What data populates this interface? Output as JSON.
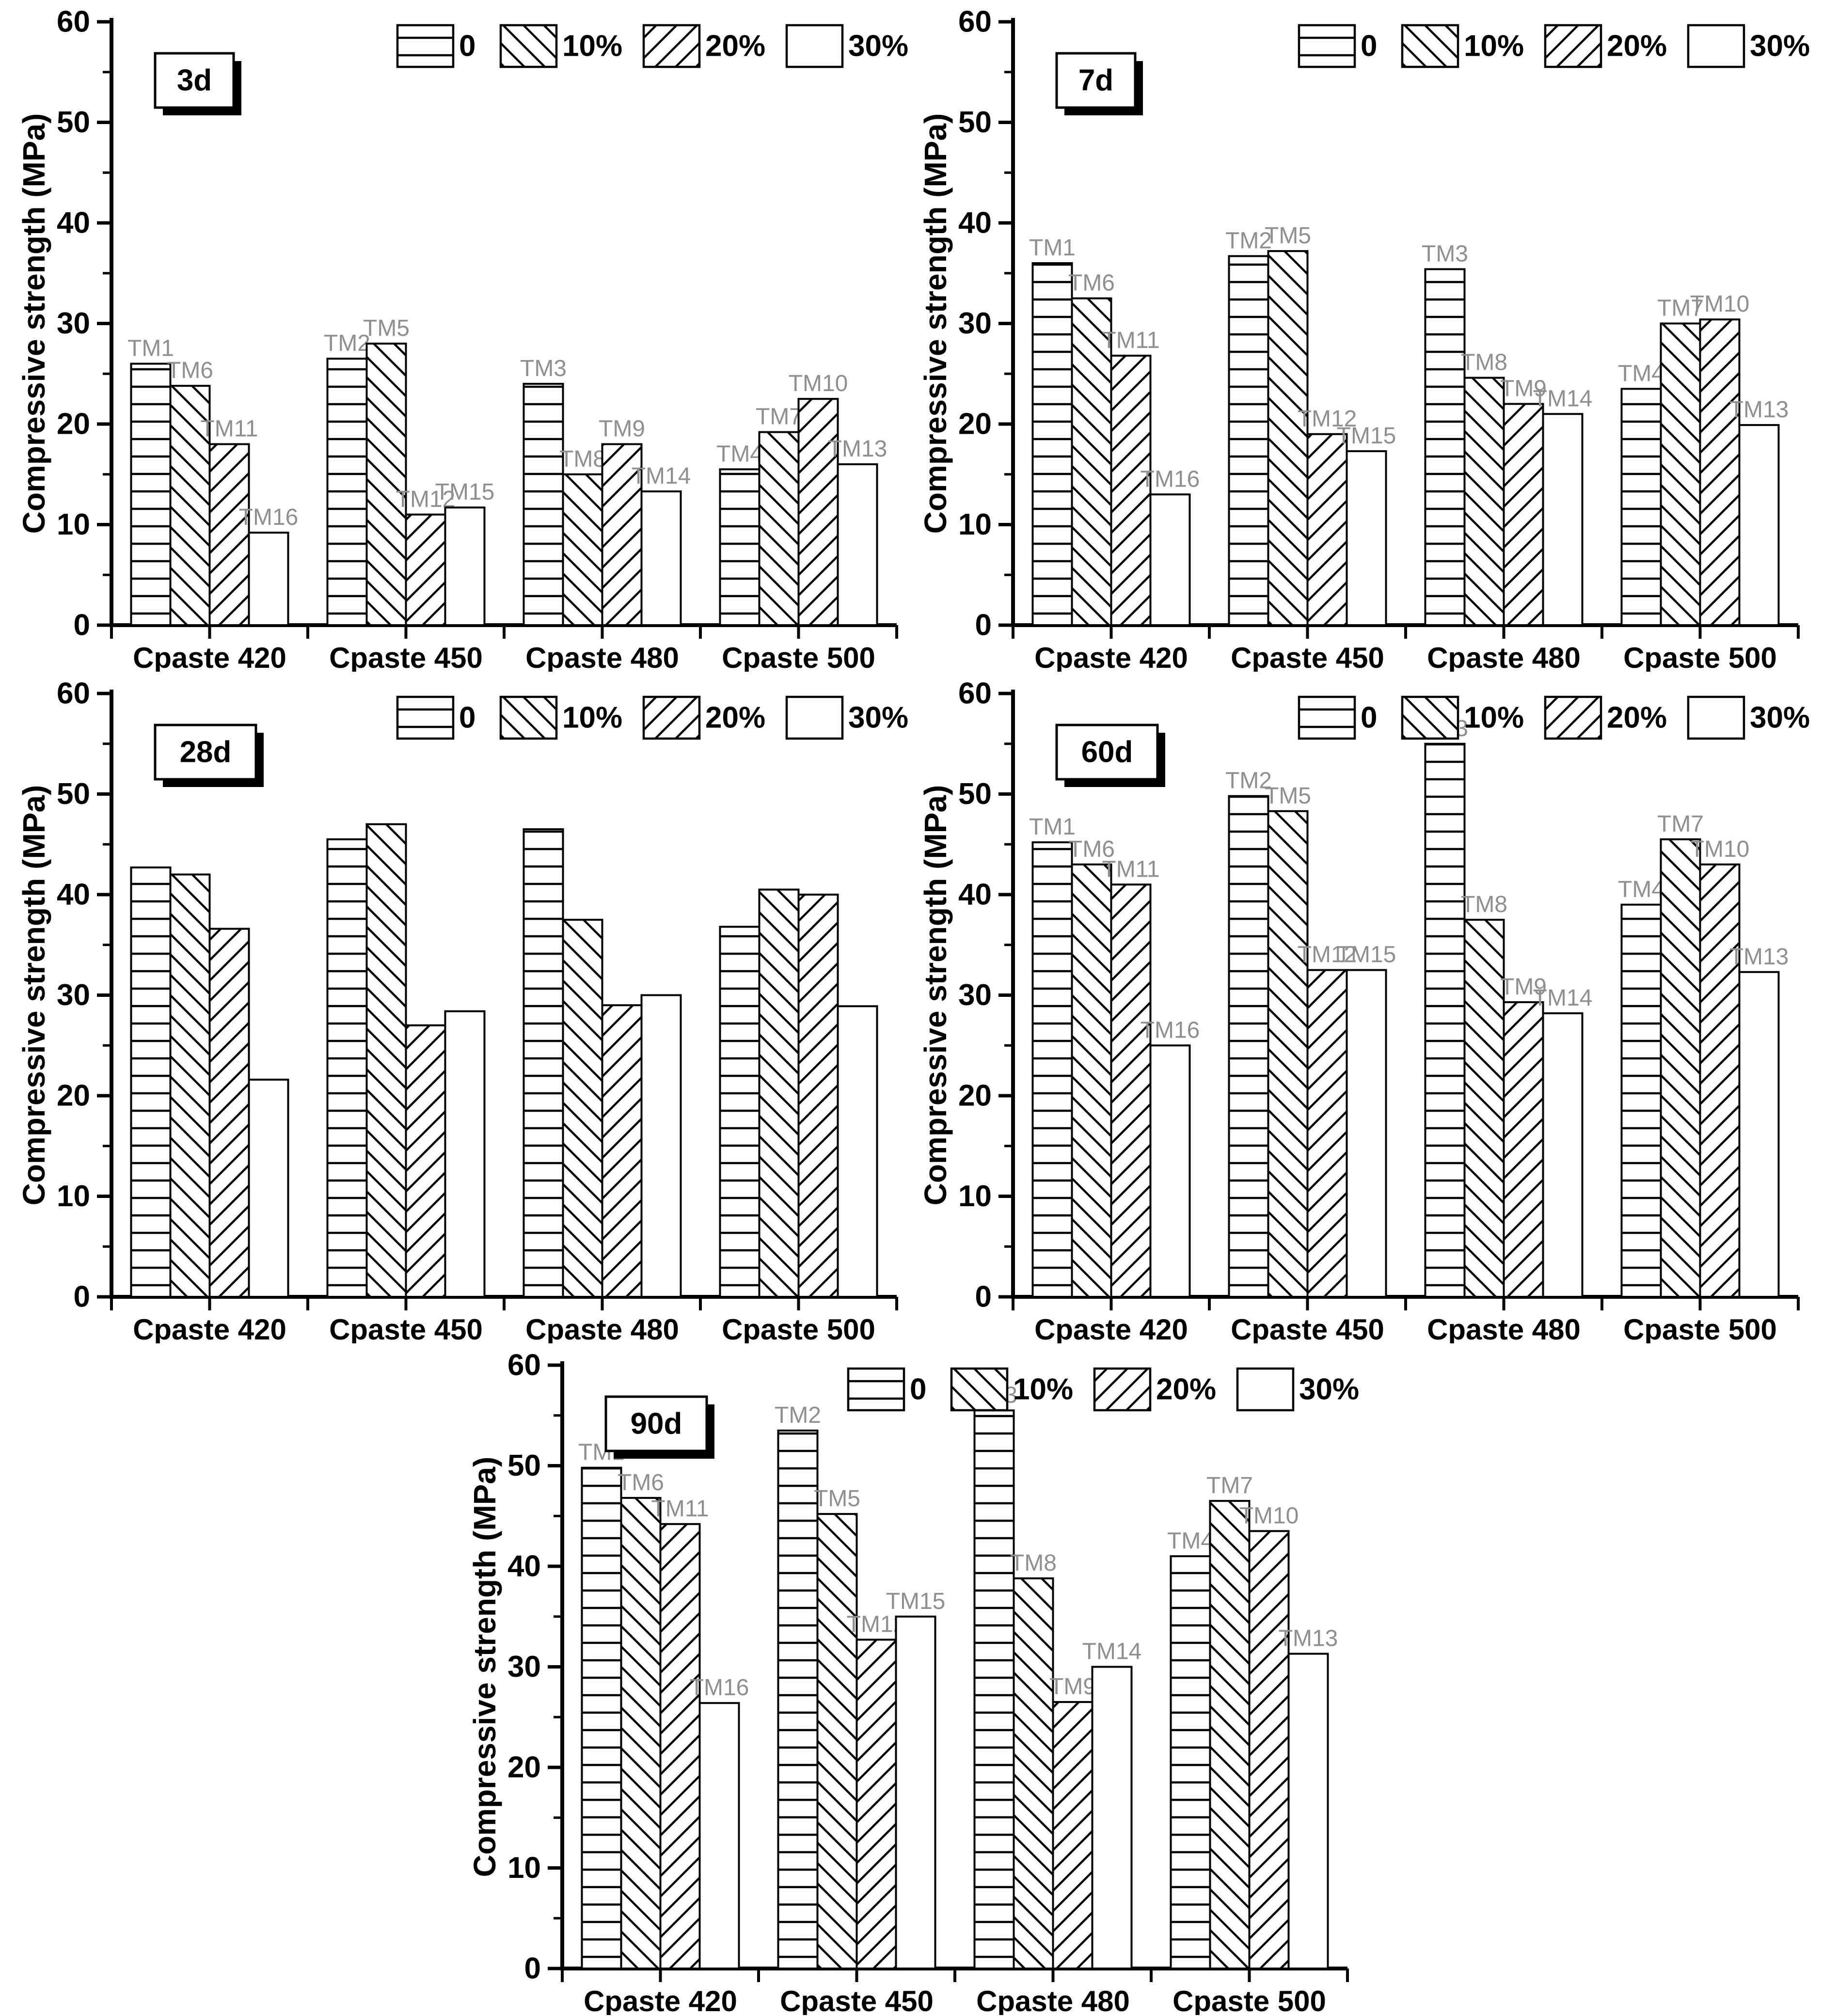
{
  "colors": {
    "axis": "#000000",
    "bar_border": "#000000",
    "bar_fill": "#ffffff",
    "bar_label": "#8f8f8f",
    "background": "#ffffff",
    "text": "#000000"
  },
  "ylabel": "Compressive strength (MPa)",
  "legend": [
    "0",
    "10%",
    "20%",
    "30%"
  ],
  "hatches": [
    "horizontal",
    "diagonal-down",
    "diagonal-up",
    "none"
  ],
  "categories": [
    "Cpaste 420",
    "Cpaste 450",
    "Cpaste 480",
    "Cpaste 500"
  ],
  "bar_labels": [
    [
      "TM1",
      "TM6",
      "TM11",
      "TM16"
    ],
    [
      "TM2",
      "TM5",
      "TM12",
      "TM15"
    ],
    [
      "TM3",
      "TM8",
      "TM9",
      "TM14"
    ],
    [
      "TM4",
      "TM7",
      "TM10",
      "TM13"
    ]
  ],
  "chart_data": [
    {
      "type": "bar",
      "title": "3d",
      "ylabel": "Compressive strength (MPa)",
      "ylim": [
        0,
        60
      ],
      "ytick_step": 10,
      "grid": false,
      "legend_position": "top",
      "legend": [
        "0",
        "10%",
        "20%",
        "30%"
      ],
      "categories": [
        "Cpaste 420",
        "Cpaste 450",
        "Cpaste 480",
        "Cpaste 500"
      ],
      "series": [
        {
          "name": "0",
          "values": [
            26.0,
            26.5,
            24.0,
            15.5
          ]
        },
        {
          "name": "10%",
          "values": [
            23.8,
            28.0,
            15.0,
            19.2
          ]
        },
        {
          "name": "20%",
          "values": [
            18.0,
            11.0,
            18.0,
            22.5
          ]
        },
        {
          "name": "30%",
          "values": [
            9.2,
            11.7,
            13.3,
            16.0
          ]
        }
      ],
      "show_bar_labels": true
    },
    {
      "type": "bar",
      "title": "7d",
      "ylabel": "Compressive strength (MPa)",
      "ylim": [
        0,
        60
      ],
      "ytick_step": 10,
      "grid": false,
      "legend_position": "top",
      "legend": [
        "0",
        "10%",
        "20%",
        "30%"
      ],
      "categories": [
        "Cpaste 420",
        "Cpaste 450",
        "Cpaste 480",
        "Cpaste 500"
      ],
      "series": [
        {
          "name": "0",
          "values": [
            36.0,
            36.7,
            35.4,
            23.5
          ]
        },
        {
          "name": "10%",
          "values": [
            32.5,
            37.2,
            24.6,
            30.0
          ]
        },
        {
          "name": "20%",
          "values": [
            26.8,
            19.0,
            22.0,
            30.4
          ]
        },
        {
          "name": "30%",
          "values": [
            13.0,
            17.3,
            21.0,
            19.9
          ]
        }
      ],
      "show_bar_labels": true
    },
    {
      "type": "bar",
      "title": "28d",
      "ylabel": "Compressive strength (MPa)",
      "ylim": [
        0,
        60
      ],
      "ytick_step": 10,
      "grid": false,
      "legend_position": "top",
      "legend": [
        "0",
        "10%",
        "20%",
        "30%"
      ],
      "categories": [
        "Cpaste 420",
        "Cpaste 450",
        "Cpaste 480",
        "Cpaste 500"
      ],
      "series": [
        {
          "name": "0",
          "values": [
            42.7,
            45.5,
            46.5,
            36.8
          ]
        },
        {
          "name": "10%",
          "values": [
            42.0,
            47.0,
            37.5,
            40.5
          ]
        },
        {
          "name": "20%",
          "values": [
            36.6,
            27.0,
            29.0,
            40.0
          ]
        },
        {
          "name": "30%",
          "values": [
            21.6,
            28.4,
            30.0,
            28.9
          ]
        }
      ],
      "show_bar_labels": false
    },
    {
      "type": "bar",
      "title": "60d",
      "ylabel": "Compressive strength (MPa)",
      "ylim": [
        0,
        60
      ],
      "ytick_step": 10,
      "grid": false,
      "legend_position": "top",
      "legend": [
        "0",
        "10%",
        "20%",
        "30%"
      ],
      "categories": [
        "Cpaste 420",
        "Cpaste 450",
        "Cpaste 480",
        "Cpaste 500"
      ],
      "series": [
        {
          "name": "0",
          "values": [
            45.2,
            49.8,
            55.0,
            39.0
          ]
        },
        {
          "name": "10%",
          "values": [
            43.0,
            48.3,
            37.5,
            45.5
          ]
        },
        {
          "name": "20%",
          "values": [
            41.0,
            32.5,
            29.3,
            43.0
          ]
        },
        {
          "name": "30%",
          "values": [
            25.0,
            32.5,
            28.2,
            32.3
          ]
        }
      ],
      "show_bar_labels": true
    },
    {
      "type": "bar",
      "title": "90d",
      "ylabel": "Compressive strength (MPa)",
      "ylim": [
        0,
        60
      ],
      "ytick_step": 10,
      "grid": false,
      "legend_position": "top",
      "legend": [
        "0",
        "10%",
        "20%",
        "30%"
      ],
      "categories": [
        "Cpaste 420",
        "Cpaste 450",
        "Cpaste 480",
        "Cpaste 500"
      ],
      "series": [
        {
          "name": "0",
          "values": [
            49.8,
            53.5,
            55.5,
            41.0
          ]
        },
        {
          "name": "10%",
          "values": [
            46.8,
            45.2,
            38.8,
            46.5
          ]
        },
        {
          "name": "20%",
          "values": [
            44.2,
            32.7,
            26.5,
            43.5
          ]
        },
        {
          "name": "30%",
          "values": [
            26.4,
            35.0,
            30.0,
            31.3
          ]
        }
      ],
      "show_bar_labels": true
    }
  ]
}
